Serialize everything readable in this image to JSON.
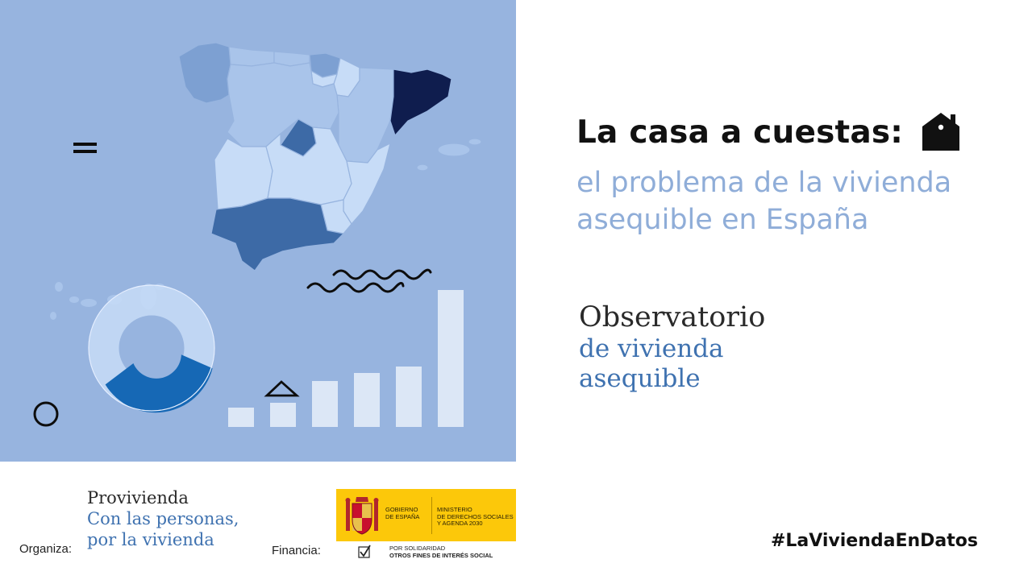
{
  "colors": {
    "hero_background": "#97b4df",
    "map_darkest": "#0f1d4e",
    "map_dark": "#3d6aa6",
    "map_medium": "#7da0d2",
    "map_light": "#a9c4ea",
    "map_lightest": "#c7dcf7",
    "accent_blue": "#3f72b0",
    "subtitle_blue": "#8fadd8",
    "gov_yellow": "#fcc80a"
  },
  "title": {
    "main": "La casa a cuestas:",
    "icon": "house-icon",
    "subtitle_line1": "el problema de la vivienda",
    "subtitle_line2": "asequible en España"
  },
  "observatorio": {
    "name": "Observatorio",
    "line2": "de vivienda",
    "line3": "asequible"
  },
  "organiza": {
    "label": "Organiza:",
    "logo_name": "Provivienda",
    "tagline_line1": "Con las personas,",
    "tagline_line2": "por la vivienda"
  },
  "financia": {
    "label": "Financia:",
    "gov_line1": "GOBIERNO",
    "gov_line2": "DE ESPAÑA",
    "ministry_line1": "MINISTERIO",
    "ministry_line2": "DE DERECHOS SOCIALES",
    "ministry_line3": "Y AGENDA 2030",
    "solidarity_line1": "POR SOLIDARIDAD",
    "solidarity_line2": "OTROS FINES DE INTERÉS SOCIAL"
  },
  "hashtag": "#LaViviendaEnDatos"
}
